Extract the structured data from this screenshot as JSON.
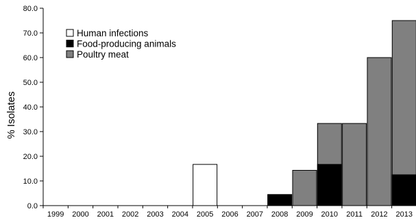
{
  "chart_data": {
    "type": "bar",
    "title": "",
    "xlabel": "",
    "ylabel": "% Isolates",
    "ylim": [
      0,
      80
    ],
    "yticks": [
      "0.0",
      "10.0",
      "20.0",
      "30.0",
      "40.0",
      "50.0",
      "60.0",
      "70.0",
      "80.0"
    ],
    "categories": [
      "1999",
      "2000",
      "2001",
      "2002",
      "2003",
      "2004",
      "2005",
      "2006",
      "2007",
      "2008",
      "2009",
      "2010",
      "2011",
      "2012",
      "2013"
    ],
    "grid": false,
    "legend_position": "top-left",
    "series": [
      {
        "name": "Human infections",
        "color": "#ffffff",
        "values": [
          0,
          0,
          0,
          0,
          0,
          0,
          16.7,
          0,
          0,
          0,
          0,
          0,
          0,
          0,
          0
        ]
      },
      {
        "name": "Food-producing animals",
        "color": "#000000",
        "values": [
          0,
          0,
          0,
          0,
          0,
          0,
          0,
          0,
          0,
          4.5,
          0,
          16.7,
          0,
          0,
          12.5
        ]
      },
      {
        "name": "Poultry meat",
        "color": "#808080",
        "values": [
          0,
          0,
          0,
          0,
          0,
          0,
          0,
          0,
          0,
          0,
          14.3,
          33.3,
          33.3,
          60.0,
          75.0
        ]
      }
    ]
  }
}
